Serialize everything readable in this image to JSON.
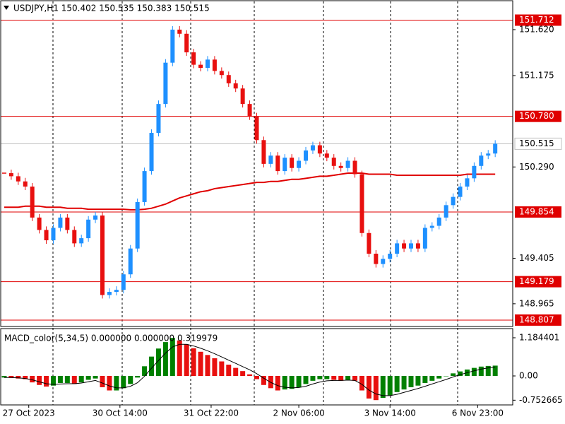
{
  "chart_data": {
    "type": "candlestick",
    "title": "USDJPY,H1  150.402 150.535 150.383 150.515",
    "candles": {
      "up_color": "#1e90ff",
      "down_color": "#e8100f",
      "values": [
        150.23,
        150.2,
        150.15,
        150.1,
        149.8,
        149.68,
        149.58,
        149.7,
        149.8,
        149.68,
        149.55,
        149.6,
        149.78,
        149.82,
        149.05,
        149.08,
        149.1,
        149.25,
        149.5,
        149.95,
        150.25,
        150.62,
        150.9,
        151.3,
        151.62,
        151.58,
        151.4,
        151.28,
        151.25,
        151.33,
        151.22,
        151.18,
        151.1,
        151.05,
        150.9,
        150.78,
        150.55,
        150.32,
        150.4,
        150.25,
        150.38,
        150.28,
        150.35,
        150.45,
        150.5,
        150.42,
        150.38,
        150.3,
        150.28,
        150.35,
        150.22,
        149.65,
        149.45,
        149.35,
        149.4,
        149.45,
        149.55,
        149.5,
        149.55,
        149.5,
        149.7,
        149.72,
        149.8,
        149.92,
        150.0,
        150.1,
        150.18,
        150.3,
        150.4,
        150.42,
        150.515
      ]
    },
    "moving_average": {
      "color": "#e00000",
      "values": [
        149.9,
        149.9,
        149.9,
        149.91,
        149.91,
        149.91,
        149.9,
        149.9,
        149.9,
        149.89,
        149.89,
        149.89,
        149.88,
        149.88,
        149.88,
        149.88,
        149.88,
        149.88,
        149.875,
        149.875,
        149.88,
        149.89,
        149.91,
        149.93,
        149.96,
        149.99,
        150.01,
        150.03,
        150.05,
        150.06,
        150.08,
        150.09,
        150.1,
        150.11,
        150.12,
        150.13,
        150.14,
        150.14,
        150.15,
        150.15,
        150.16,
        150.17,
        150.17,
        150.18,
        150.19,
        150.2,
        150.2,
        150.21,
        150.22,
        150.23,
        150.23,
        150.23,
        150.22,
        150.22,
        150.22,
        150.22,
        150.21,
        150.21,
        150.21,
        150.21,
        150.21,
        150.21,
        150.21,
        150.21,
        150.21,
        150.21,
        150.22,
        150.22,
        150.22,
        150.22,
        150.22
      ]
    },
    "xlim": [
      -0.5,
      72.5
    ],
    "ylim": [
      148.745,
      151.907
    ],
    "yticks": [
      {
        "value": 151.62,
        "label": "151.620"
      },
      151.175,
      {
        "value": 150.29,
        "label": "150.290"
      },
      149.405,
      148.965
    ],
    "xticks": [
      {
        "value": 3.5,
        "label": "27 Oct 2023"
      },
      {
        "value": 16.5,
        "label": "30 Oct 14:00"
      },
      {
        "value": 29.5,
        "label": "31 Oct 22:00"
      },
      {
        "value": 42,
        "label": "2 Nov 06:00"
      },
      {
        "value": 55,
        "label": "3 Nov 14:00"
      },
      {
        "value": 67.5,
        "label": "6 Nov 23:00"
      }
    ],
    "levels": {
      "color": "#e00000",
      "values": [
        151.712,
        {
          "value": 150.78,
          "label": "150.780"
        },
        149.854,
        149.179,
        148.807
      ]
    },
    "current_price": {
      "value": 150.515,
      "color": "#c0c0c0"
    },
    "macd": {
      "title": "MACD_color(5,34,5) 0.000000 0.000000 0.319979",
      "up_color": "#008000",
      "down_color": "#e8100f",
      "signal_color": "#000000",
      "ylim": [
        -0.899,
        1.469
      ],
      "yticks": [
        1.184401,
        {
          "value": 0,
          "label": "0.00"
        },
        -0.752665
      ],
      "histogram": [
        -0.05,
        -0.06,
        -0.08,
        -0.1,
        -0.2,
        -0.28,
        -0.33,
        -0.3,
        -0.22,
        -0.22,
        -0.25,
        -0.2,
        -0.12,
        -0.08,
        -0.35,
        -0.45,
        -0.45,
        -0.38,
        -0.25,
        -0.05,
        0.3,
        0.6,
        0.85,
        1.05,
        1.18,
        1.1,
        0.98,
        0.86,
        0.75,
        0.65,
        0.55,
        0.45,
        0.35,
        0.25,
        0.15,
        0.05,
        -0.1,
        -0.28,
        -0.38,
        -0.45,
        -0.42,
        -0.4,
        -0.35,
        -0.25,
        -0.15,
        -0.1,
        -0.1,
        -0.12,
        -0.15,
        -0.12,
        -0.15,
        -0.45,
        -0.7,
        -0.75,
        -0.68,
        -0.6,
        -0.5,
        -0.42,
        -0.35,
        -0.3,
        -0.22,
        -0.15,
        -0.08,
        0.0,
        0.08,
        0.14,
        0.2,
        0.25,
        0.29,
        0.31,
        0.32
      ],
      "signal": [
        -0.05,
        -0.05,
        -0.06,
        -0.08,
        -0.12,
        -0.18,
        -0.24,
        -0.26,
        -0.25,
        -0.24,
        -0.24,
        -0.22,
        -0.18,
        -0.14,
        -0.22,
        -0.31,
        -0.37,
        -0.37,
        -0.32,
        -0.21,
        -0.01,
        0.24,
        0.48,
        0.71,
        0.9,
        0.98,
        0.98,
        0.93,
        0.86,
        0.78,
        0.69,
        0.59,
        0.49,
        0.39,
        0.29,
        0.19,
        0.07,
        -0.07,
        -0.2,
        -0.3,
        -0.35,
        -0.37,
        -0.36,
        -0.32,
        -0.25,
        -0.19,
        -0.15,
        -0.14,
        -0.14,
        -0.13,
        -0.14,
        -0.26,
        -0.44,
        -0.56,
        -0.61,
        -0.61,
        -0.57,
        -0.51,
        -0.45,
        -0.39,
        -0.32,
        -0.25,
        -0.18,
        -0.11,
        -0.03,
        0.04,
        0.1,
        0.16,
        0.21,
        0.25,
        0.28
      ]
    }
  }
}
